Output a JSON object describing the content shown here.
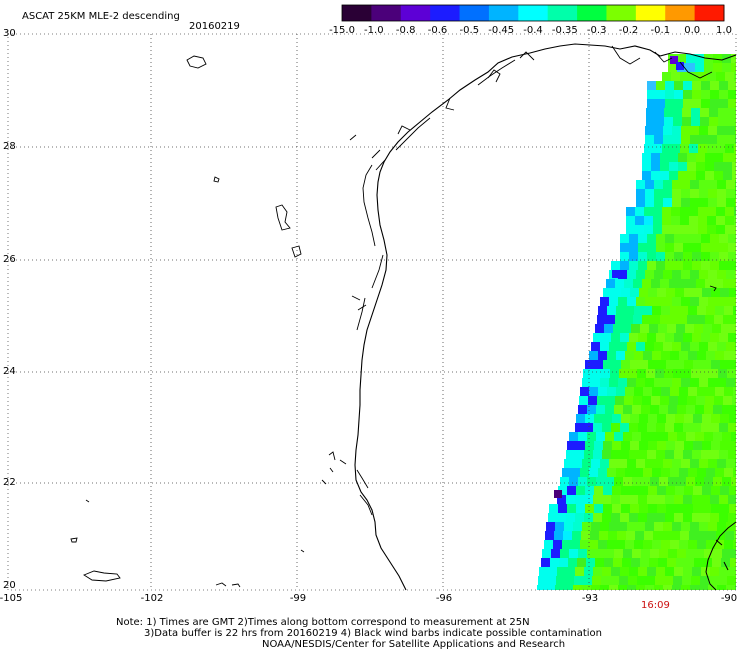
{
  "header": {
    "title": "ASCAT 25KM MLE-2 descending",
    "date": "20160219"
  },
  "colorbar": {
    "labels": [
      "-15.0",
      "-1.0",
      "-0.8",
      "-0.6",
      "-0.5",
      "-0.45",
      "-0.4",
      "-0.35",
      "-0.3",
      "-0.2",
      "-0.1",
      "0.0",
      "1.0"
    ],
    "colors": [
      "#2a0035",
      "#4b007a",
      "#5d00d6",
      "#1c1cff",
      "#0070ff",
      "#00b4ff",
      "#00ffff",
      "#00ffaa",
      "#00ff40",
      "#7cff00",
      "#ffff00",
      "#ff9900",
      "#ff1a00"
    ]
  },
  "axes": {
    "y_labels": [
      "30",
      "28",
      "26",
      "24",
      "22",
      "20"
    ],
    "x_labels": [
      "-105",
      "-102",
      "-99",
      "-96",
      "-93",
      "-90"
    ]
  },
  "pass_time": "16:09",
  "notes": {
    "line1": "Note: 1) Times are GMT 2)Times along bottom correspond to measurement at 25N",
    "line2": "3)Data buffer is 22 hrs from 20160219 4) Black wind barbs indicate possible contamination",
    "line3": "NOAA/NESDIS/Center for Satellite Applications and Research"
  }
}
